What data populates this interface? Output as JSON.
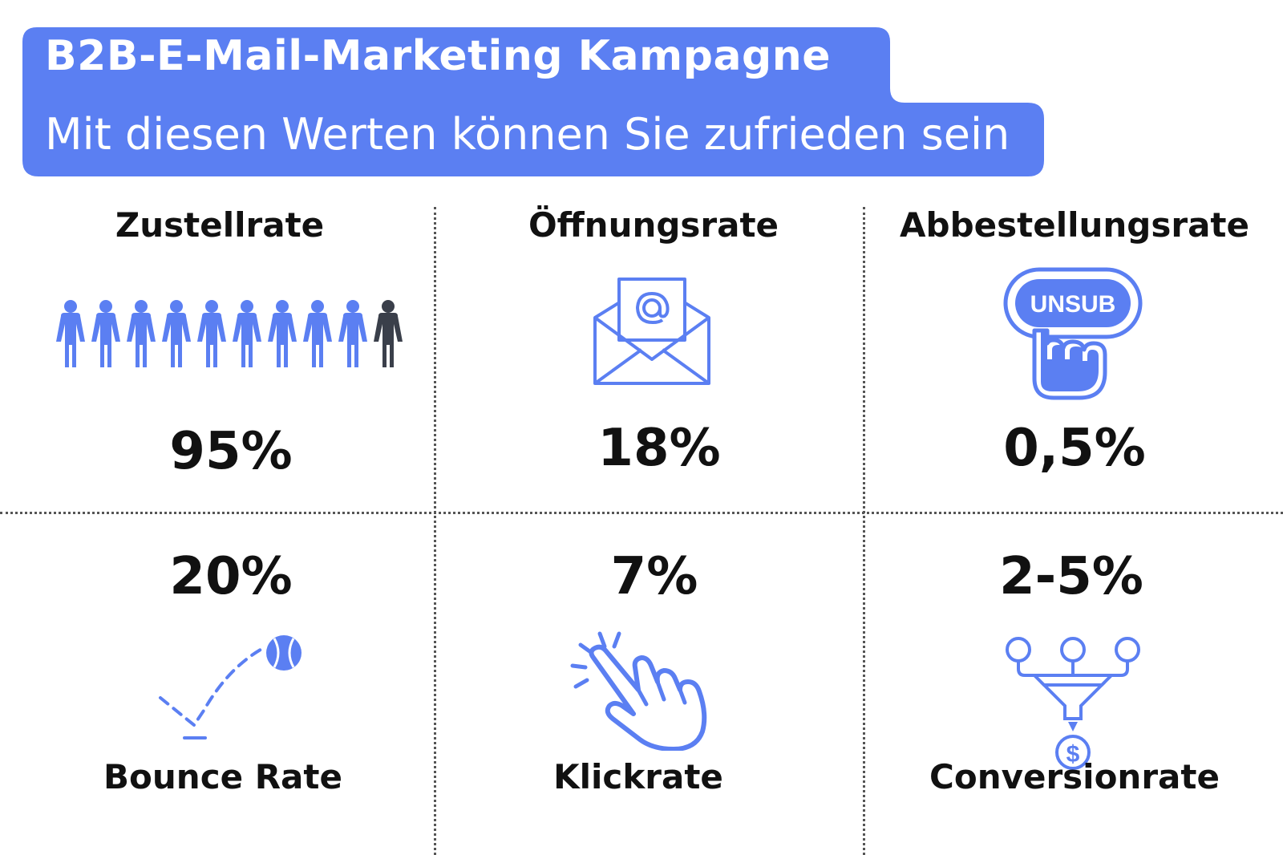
{
  "header": {
    "title": "B2B-E-Mail-Marketing Kampagne",
    "subtitle": "Mit diesen Werten können Sie zufrieden sein"
  },
  "colors": {
    "accent": "#5b7ff2",
    "dark": "#3a3f4a",
    "text": "#111111"
  },
  "metrics": [
    {
      "label": "Zustellrate",
      "value": "95%",
      "icon": "people-icon",
      "people_total": 10,
      "people_highlighted": 9
    },
    {
      "label": "Öffnungsrate",
      "value": "18%",
      "icon": "envelope-at-icon"
    },
    {
      "label": "Abbestellungsrate",
      "value": "0,5%",
      "icon": "unsubscribe-button-icon",
      "icon_text": "UNSUB"
    },
    {
      "label": "Bounce Rate",
      "value": "20%",
      "icon": "bouncing-ball-icon"
    },
    {
      "label": "Klickrate",
      "value": "7%",
      "icon": "clicking-hand-icon"
    },
    {
      "label": "Conversionrate",
      "value": "2-5%",
      "icon": "conversion-funnel-icon"
    }
  ]
}
